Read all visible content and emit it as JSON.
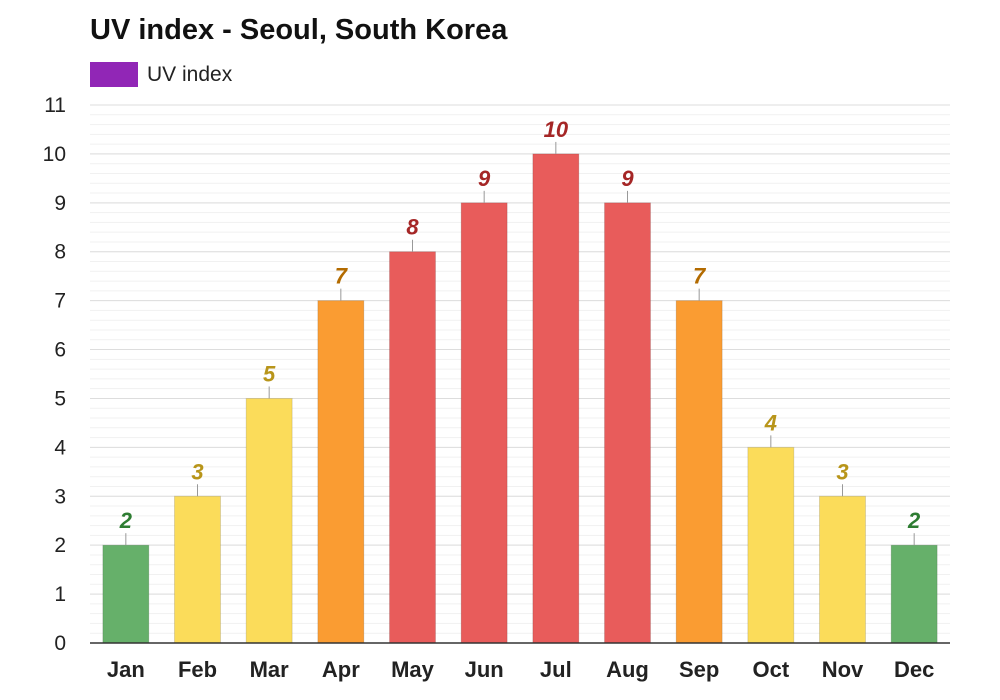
{
  "chart_data": {
    "type": "bar",
    "title": "UV index - Seoul, South Korea",
    "categories": [
      "Jan",
      "Feb",
      "Mar",
      "Apr",
      "May",
      "Jun",
      "Jul",
      "Aug",
      "Sep",
      "Oct",
      "Nov",
      "Dec"
    ],
    "series": [
      {
        "name": "UV index",
        "values": [
          2,
          3,
          5,
          7,
          8,
          9,
          10,
          9,
          7,
          4,
          3,
          2
        ]
      }
    ],
    "xlabel": "",
    "ylabel": "",
    "ylim": [
      0,
      11
    ],
    "yticks": [
      "0",
      "1",
      "2",
      "3",
      "4",
      "5",
      "6",
      "7",
      "8",
      "9",
      "10",
      "11"
    ],
    "grid": true,
    "legend_position": "top-left",
    "legend_color": "#9126b6",
    "colors": {
      "low": "#66b06a",
      "moderate": "#fbdc5a",
      "high": "#fa9c32",
      "very_high": "#e85c5b"
    },
    "label_colors": {
      "low": "#2e7d32",
      "moderate": "#b8951a",
      "high": "#b36b00",
      "very_high": "#a52626"
    }
  }
}
